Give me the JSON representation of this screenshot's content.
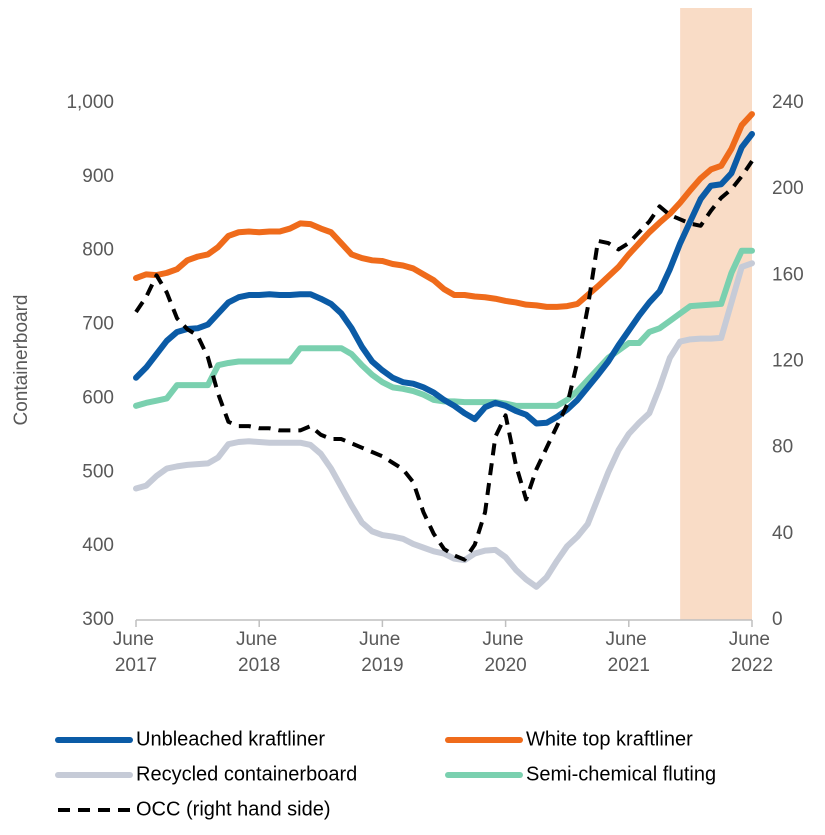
{
  "chart_data": {
    "type": "line",
    "y_axis_label": "Containerboard",
    "categories": [
      "June 2017",
      null,
      null,
      null,
      null,
      null,
      null,
      null,
      null,
      null,
      null,
      null,
      "June 2018",
      null,
      null,
      null,
      null,
      null,
      null,
      null,
      null,
      null,
      null,
      null,
      "June 2019",
      null,
      null,
      null,
      null,
      null,
      null,
      null,
      null,
      null,
      null,
      null,
      "June 2020",
      null,
      null,
      null,
      null,
      null,
      null,
      null,
      null,
      null,
      null,
      null,
      "June 2021",
      null,
      null,
      null,
      null,
      null,
      null,
      null,
      null,
      null,
      null,
      null,
      "June 2022"
    ],
    "ylim": [
      300,
      1000
    ],
    "yticks": [
      300,
      400,
      500,
      600,
      700,
      800,
      900,
      {
        "value": 1000,
        "label": "1,000"
      }
    ],
    "y2lim": [
      0,
      240
    ],
    "y2ticks": [
      0,
      40,
      80,
      120,
      160,
      200,
      240
    ],
    "highlight_range": [
      53,
      60
    ],
    "highlight_color": "#f9dcc6",
    "series": [
      {
        "name": "Unbleached kraftliner",
        "color": "#0b5ba6",
        "style": "solid",
        "values": [
          628,
          642,
          660,
          678,
          690,
          694,
          695,
          700,
          715,
          730,
          737,
          740,
          740,
          741,
          740,
          740,
          741,
          741,
          735,
          728,
          715,
          695,
          670,
          650,
          638,
          628,
          622,
          620,
          615,
          608,
          598,
          590,
          580,
          572,
          588,
          594,
          590,
          583,
          578,
          566,
          567,
          575,
          585,
          598,
          615,
          632,
          650,
          672,
          692,
          712,
          730,
          745,
          775,
          810,
          840,
          870,
          888,
          890,
          905,
          940,
          958
        ]
      },
      {
        "name": "White top kraftliner",
        "color": "#ef6b1b",
        "style": "solid",
        "values": [
          763,
          768,
          767,
          770,
          775,
          787,
          792,
          795,
          805,
          820,
          825,
          826,
          825,
          826,
          826,
          830,
          837,
          836,
          830,
          825,
          810,
          795,
          790,
          787,
          786,
          782,
          780,
          776,
          768,
          760,
          748,
          740,
          740,
          738,
          737,
          735,
          732,
          730,
          727,
          726,
          724,
          724,
          725,
          728,
          740,
          752,
          765,
          778,
          795,
          810,
          825,
          838,
          850,
          865,
          882,
          898,
          910,
          915,
          938,
          970,
          985
        ]
      },
      {
        "name": "Recycled containerboard",
        "color": "#c6cbd7",
        "style": "solid",
        "values": [
          478,
          482,
          495,
          505,
          508,
          510,
          511,
          512,
          520,
          538,
          541,
          542,
          541,
          540,
          540,
          540,
          540,
          537,
          525,
          505,
          480,
          455,
          432,
          420,
          415,
          413,
          410,
          403,
          398,
          393,
          390,
          383,
          381,
          390,
          394,
          395,
          385,
          368,
          355,
          345,
          358,
          380,
          400,
          413,
          430,
          465,
          500,
          530,
          552,
          567,
          580,
          615,
          655,
          677,
          680,
          681,
          681,
          682,
          730,
          778,
          783
        ]
      },
      {
        "name": "Semi-chemical fluting",
        "color": "#7ad0af",
        "style": "solid",
        "values": [
          590,
          594,
          597,
          600,
          618,
          618,
          618,
          618,
          645,
          648,
          650,
          650,
          650,
          650,
          650,
          650,
          668,
          668,
          668,
          668,
          668,
          660,
          645,
          632,
          622,
          615,
          613,
          610,
          605,
          598,
          596,
          596,
          595,
          595,
          595,
          595,
          593,
          590,
          590,
          590,
          590,
          590,
          598,
          610,
          625,
          640,
          655,
          665,
          675,
          675,
          690,
          695,
          705,
          715,
          725,
          726,
          727,
          728,
          770,
          800,
          800
        ]
      },
      {
        "name": "OCC (right hand side)",
        "color": "#000000",
        "style": "dashed",
        "axis": "y2",
        "values": [
          143,
          150,
          160,
          152,
          140,
          135,
          132,
          122,
          105,
          92,
          90,
          90,
          89,
          89,
          88,
          88,
          88,
          90,
          86,
          84,
          84,
          82,
          80,
          78,
          76,
          73,
          70,
          64,
          50,
          40,
          33,
          30,
          28,
          35,
          50,
          85,
          95,
          72,
          56,
          70,
          80,
          90,
          100,
          120,
          145,
          176,
          175,
          172,
          175,
          180,
          185,
          192,
          188,
          186,
          184,
          183,
          190,
          196,
          200,
          206,
          213
        ]
      }
    ]
  }
}
